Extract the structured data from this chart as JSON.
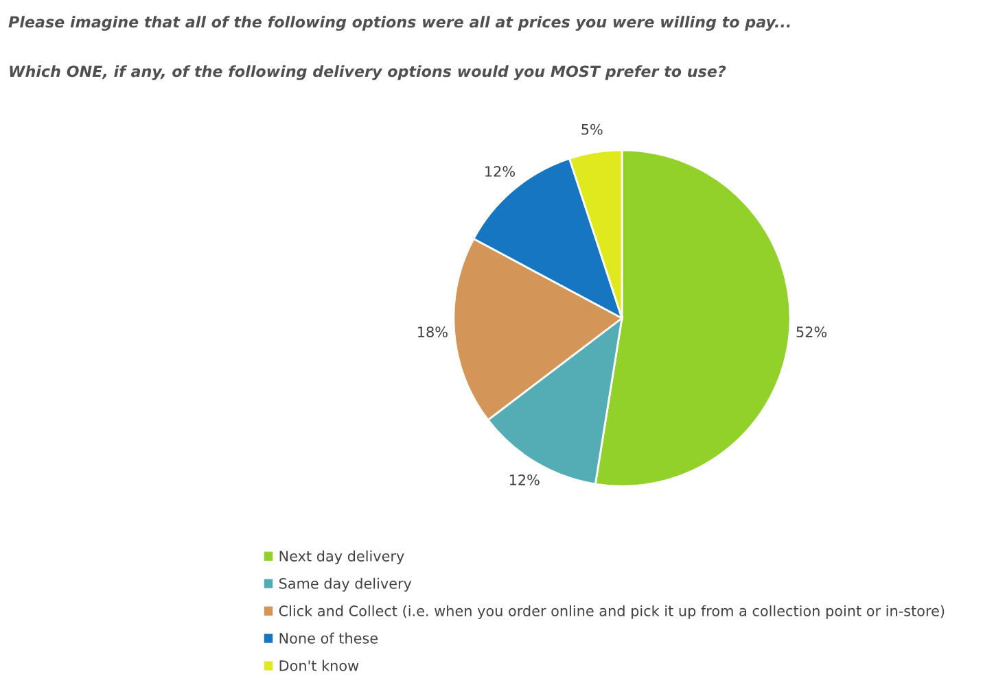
{
  "chart_data": {
    "type": "pie",
    "title": "Please imagine that all of the following options were all at prices you were willing to pay...",
    "subtitle": "Which ONE, if any, of the following delivery options would you MOST prefer to use?",
    "categories": [
      "Next day delivery",
      "Same day delivery",
      "Click and Collect (i.e. when you order online and pick it up from a collection point or in-store)",
      "None of these",
      "Don't know"
    ],
    "values": [
      52,
      12,
      18,
      12,
      5
    ],
    "value_labels": [
      "52%",
      "12%",
      "18%",
      "12%",
      "5%"
    ],
    "colors": [
      "#92d02a",
      "#54adb4",
      "#d39658",
      "#1776c2",
      "#e0e81e"
    ],
    "legend": "bottom"
  }
}
